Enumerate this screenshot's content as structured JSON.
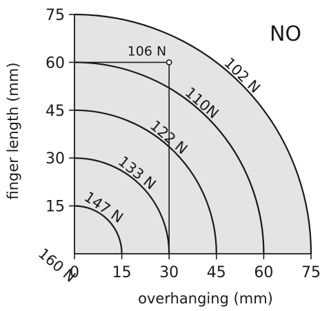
{
  "chart_data": {
    "type": "line",
    "title": "",
    "corner_label": "NO",
    "xlabel": "overhanging  (mm)",
    "ylabel": "finger length  (mm)",
    "xlim": [
      0,
      75
    ],
    "ylim": [
      0,
      75
    ],
    "x_ticks": [
      "0",
      "15",
      "30",
      "45",
      "60",
      "75"
    ],
    "y_ticks": [
      "",
      "15",
      "30",
      "45",
      "60",
      "75"
    ],
    "grid": false,
    "series": [
      {
        "name": "102 N",
        "radius": 75
      },
      {
        "name": "110N",
        "radius": 60
      },
      {
        "name": "122 N",
        "radius": 45
      },
      {
        "name": "133 N",
        "radius": 30
      },
      {
        "name": "147 N",
        "radius": 15
      },
      {
        "name": "160 N",
        "radius": 0
      }
    ],
    "point": {
      "label": "106 N",
      "x": 30,
      "y": 60
    },
    "colors": {
      "plot_background": "#e4e4e4",
      "ink": "#1a1a1a"
    }
  }
}
